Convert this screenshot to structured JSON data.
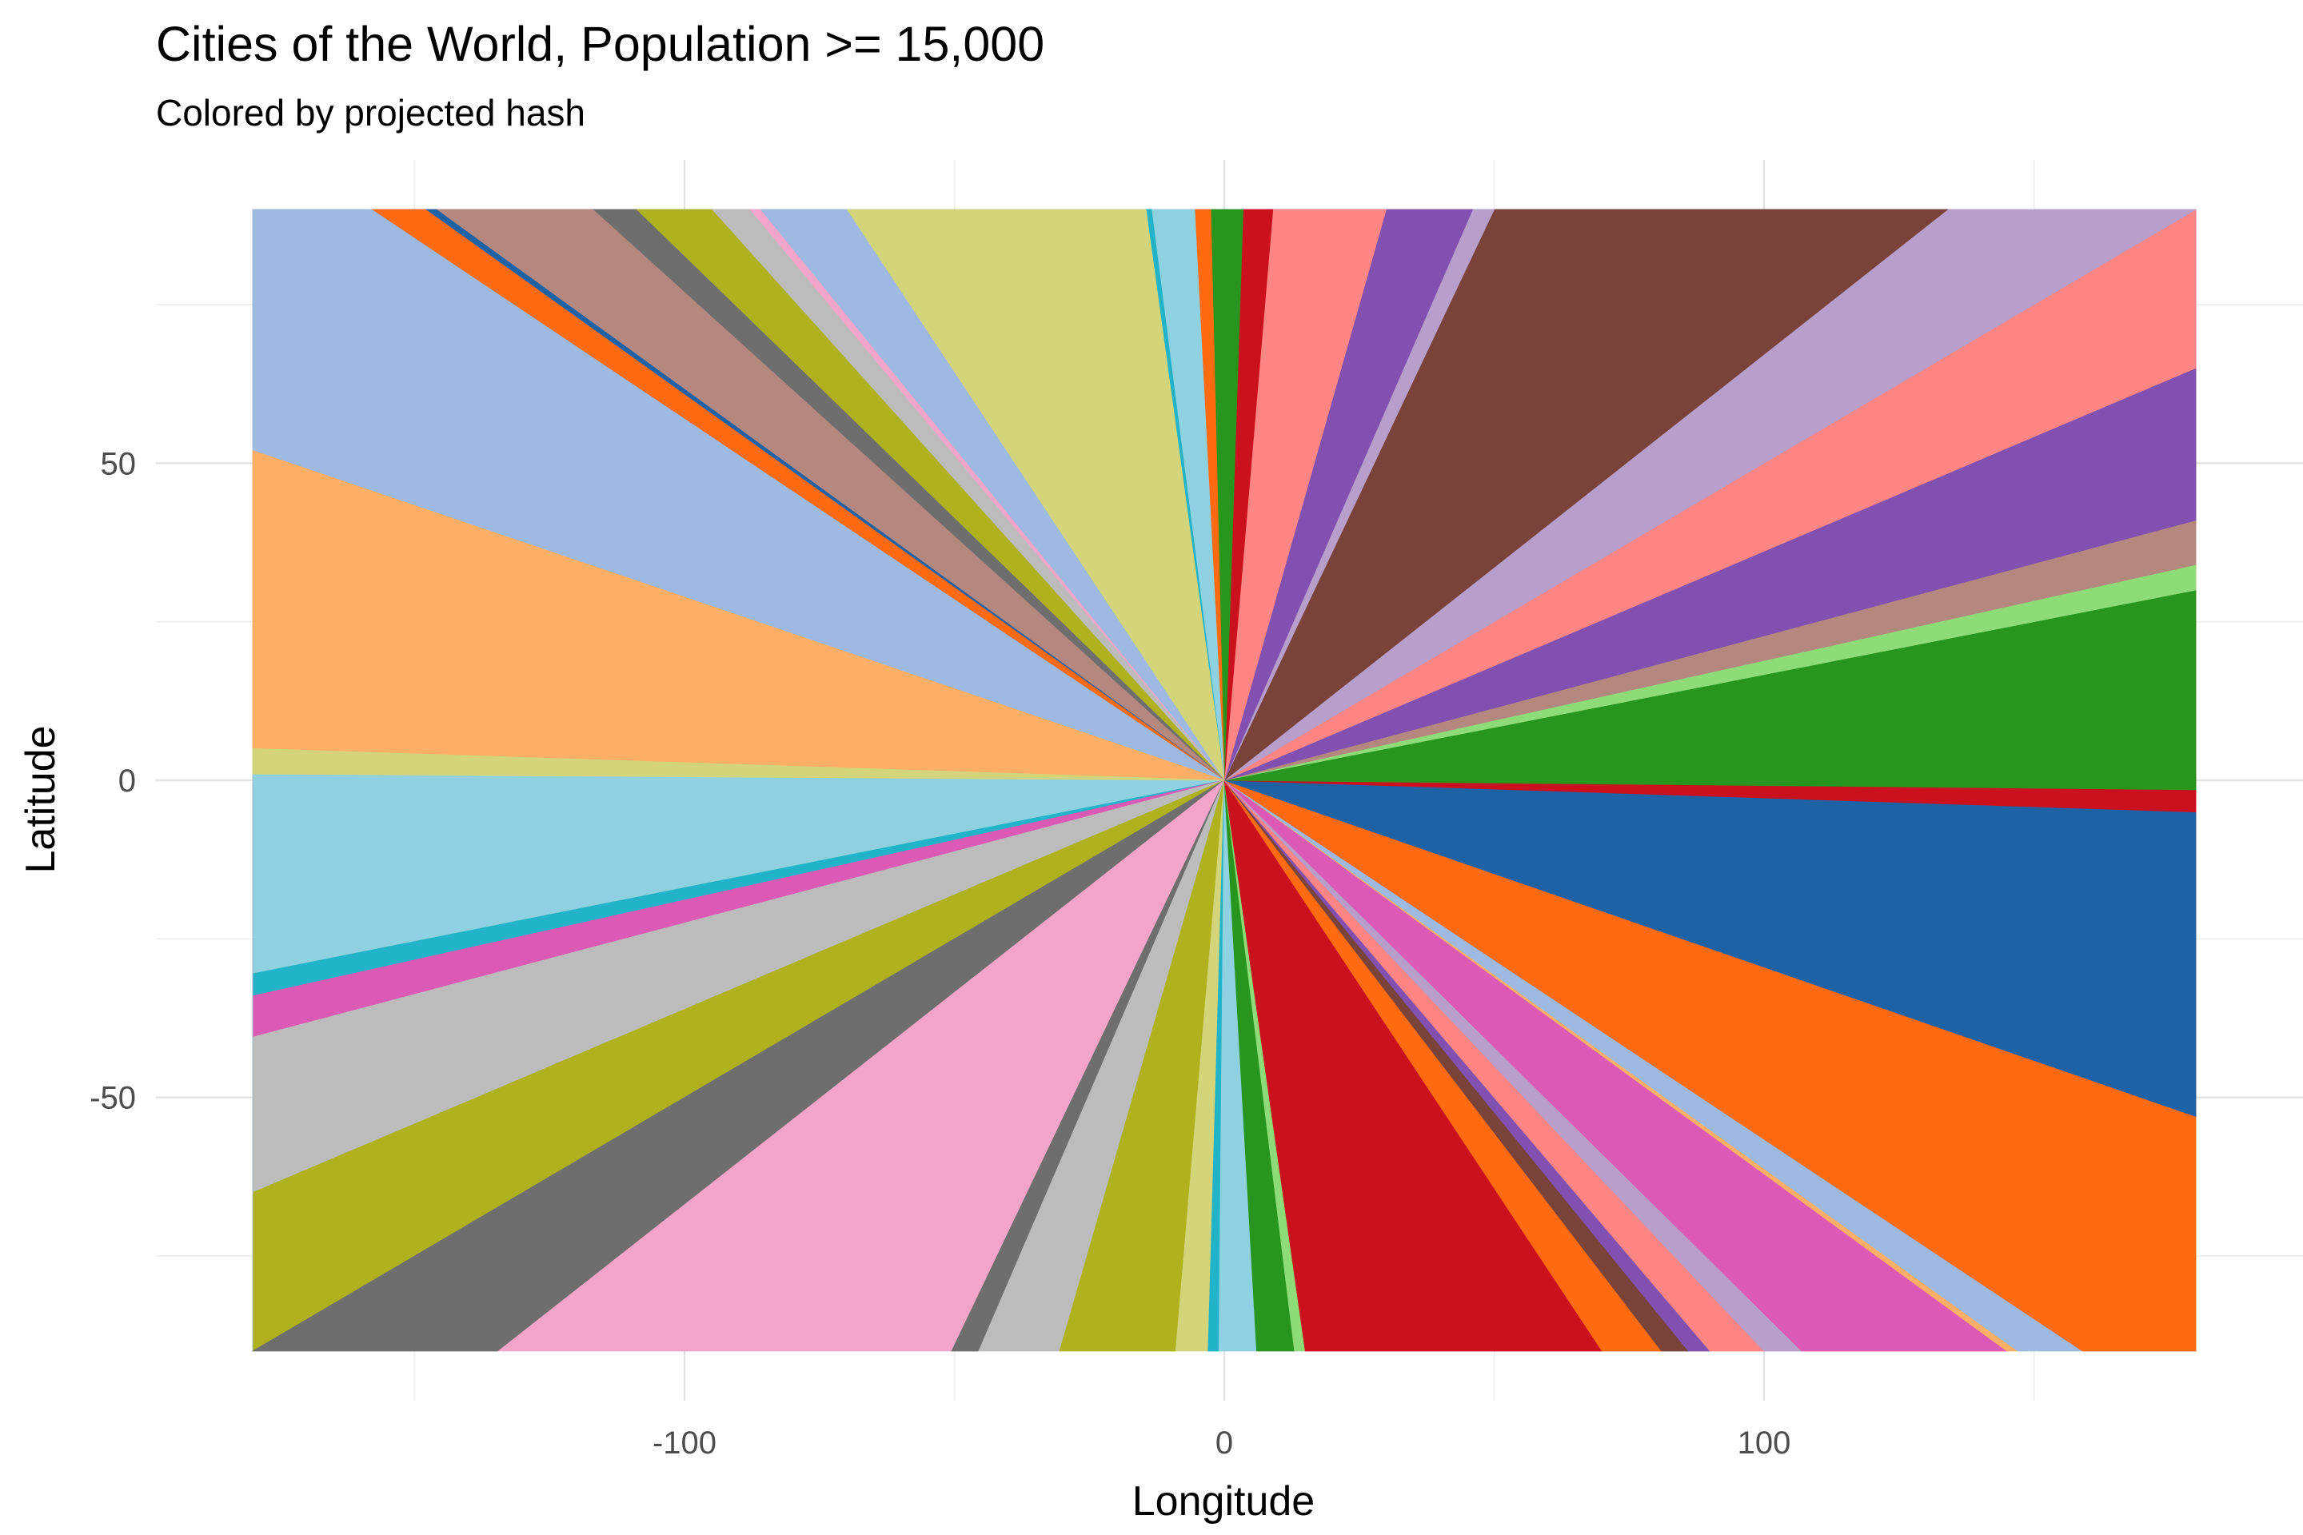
{
  "chart_data": {
    "type": "area",
    "title": "Cities of the World, Population >= 15,000",
    "subtitle": "Colored by projected hash",
    "xlabel": "Longitude",
    "ylabel": "Latitude",
    "xlim": [
      -180,
      180
    ],
    "ylim": [
      -90,
      90
    ],
    "x_ticks": [
      -100,
      0,
      100
    ],
    "x_tick_labels": [
      "-100",
      "0",
      "100"
    ],
    "y_ticks": [
      -50,
      0,
      50
    ],
    "y_tick_labels": [
      "-50",
      "0",
      "50"
    ],
    "grid": true,
    "legend": "none",
    "center": [
      0,
      0
    ],
    "sectors": [
      {
        "from": [
          -180,
          1
        ],
        "to": [
          -180,
          -30.5
        ],
        "color": "#8fd1e0"
      },
      {
        "from": [
          -180,
          -30.5
        ],
        "to": [
          -180,
          -34
        ],
        "color": "#21b3c8"
      },
      {
        "from": [
          -180,
          -34
        ],
        "to": [
          -180,
          -40.5
        ],
        "color": "#dc5ab5"
      },
      {
        "from": [
          -180,
          -40.5
        ],
        "to": [
          -180,
          -65
        ],
        "color": "#bcbcbc"
      },
      {
        "from": [
          -180,
          -65
        ],
        "to": [
          -180,
          -90
        ],
        "color": "#afb21d"
      },
      {
        "from": [
          -180,
          -90
        ],
        "to": [
          -134.5,
          -90
        ],
        "color": "#6e6e6e"
      },
      {
        "from": [
          -134.5,
          -90
        ],
        "to": [
          -50.5,
          -90
        ],
        "color": "#f3a5c9"
      },
      {
        "from": [
          -50.5,
          -90
        ],
        "to": [
          -45.5,
          -90
        ],
        "color": "#6e6e6e"
      },
      {
        "from": [
          -45.5,
          -90
        ],
        "to": [
          -30.5,
          -90
        ],
        "color": "#bcbcbc"
      },
      {
        "from": [
          -30.5,
          -90
        ],
        "to": [
          -9,
          -90
        ],
        "color": "#afb21d"
      },
      {
        "from": [
          -9,
          -90
        ],
        "to": [
          -3,
          -90
        ],
        "color": "#d4d57b"
      },
      {
        "from": [
          -3,
          -90
        ],
        "to": [
          -1,
          -90
        ],
        "color": "#21b3c8"
      },
      {
        "from": [
          -1,
          -90
        ],
        "to": [
          6,
          -90
        ],
        "color": "#8fd1e0"
      },
      {
        "from": [
          6,
          -90
        ],
        "to": [
          13,
          -90
        ],
        "color": "#28951f"
      },
      {
        "from": [
          13,
          -90
        ],
        "to": [
          15,
          -90
        ],
        "color": "#8ddc78"
      },
      {
        "from": [
          15,
          -90
        ],
        "to": [
          70,
          -90
        ],
        "color": "#cc111e"
      },
      {
        "from": [
          70,
          -90
        ],
        "to": [
          81,
          -90
        ],
        "color": "#fd6a10"
      },
      {
        "from": [
          81,
          -90
        ],
        "to": [
          86,
          -90
        ],
        "color": "#7a4339"
      },
      {
        "from": [
          86,
          -90
        ],
        "to": [
          90,
          -90
        ],
        "color": "#8150b0"
      },
      {
        "from": [
          90,
          -90
        ],
        "to": [
          100,
          -90
        ],
        "color": "#fd8583"
      },
      {
        "from": [
          100,
          -90
        ],
        "to": [
          107,
          -90
        ],
        "color": "#b89ecb"
      },
      {
        "from": [
          107,
          -90
        ],
        "to": [
          145,
          -90
        ],
        "color": "#dc5ab5"
      },
      {
        "from": [
          145,
          -90
        ],
        "to": [
          147,
          -90
        ],
        "color": "#fdae67"
      },
      {
        "from": [
          147,
          -90
        ],
        "to": [
          159,
          -90
        ],
        "color": "#9fbae2"
      },
      {
        "from": [
          159,
          -90
        ],
        "to": [
          180,
          -90
        ],
        "color": "#fd6a10"
      },
      {
        "from": [
          180,
          -90
        ],
        "to": [
          180,
          -53
        ],
        "color": "#fd6a10"
      },
      {
        "from": [
          180,
          -53
        ],
        "to": [
          180,
          -5
        ],
        "color": "#1c62a4"
      },
      {
        "from": [
          180,
          -5
        ],
        "to": [
          180,
          -1.5
        ],
        "color": "#cc111e"
      },
      {
        "from": [
          180,
          -1.5
        ],
        "to": [
          180,
          30
        ],
        "color": "#28951f"
      },
      {
        "from": [
          180,
          30
        ],
        "to": [
          180,
          34
        ],
        "color": "#8ddc78"
      },
      {
        "from": [
          180,
          34
        ],
        "to": [
          180,
          41
        ],
        "color": "#b4877f"
      },
      {
        "from": [
          180,
          41
        ],
        "to": [
          180,
          65
        ],
        "color": "#8150b0"
      },
      {
        "from": [
          180,
          65
        ],
        "to": [
          180,
          90
        ],
        "color": "#fd8583"
      },
      {
        "from": [
          180,
          90
        ],
        "to": [
          134,
          90
        ],
        "color": "#b89ecb"
      },
      {
        "from": [
          134,
          90
        ],
        "to": [
          50,
          90
        ],
        "color": "#7a4339"
      },
      {
        "from": [
          50,
          90
        ],
        "to": [
          46,
          90
        ],
        "color": "#b89ecb"
      },
      {
        "from": [
          46,
          90
        ],
        "to": [
          30,
          90
        ],
        "color": "#8150b0"
      },
      {
        "from": [
          30,
          90
        ],
        "to": [
          9,
          90
        ],
        "color": "#fd8583"
      },
      {
        "from": [
          9,
          90
        ],
        "to": [
          3.5,
          90
        ],
        "color": "#cc111e"
      },
      {
        "from": [
          3.5,
          90
        ],
        "to": [
          -2.5,
          90
        ],
        "color": "#28951f"
      },
      {
        "from": [
          -2.5,
          90
        ],
        "to": [
          -5.5,
          90
        ],
        "color": "#fd6a10"
      },
      {
        "from": [
          -5.5,
          90
        ],
        "to": [
          -13.5,
          90
        ],
        "color": "#8fd1e0"
      },
      {
        "from": [
          -13.5,
          90
        ],
        "to": [
          -14.5,
          90
        ],
        "color": "#21b3c8"
      },
      {
        "from": [
          -14.5,
          90
        ],
        "to": [
          -70,
          90
        ],
        "color": "#d4d57b"
      },
      {
        "from": [
          -70,
          90
        ],
        "to": [
          -86,
          90
        ],
        "color": "#9fbae2"
      },
      {
        "from": [
          -86,
          90
        ],
        "to": [
          -88,
          90
        ],
        "color": "#f3a5c9"
      },
      {
        "from": [
          -88,
          90
        ],
        "to": [
          -95,
          90
        ],
        "color": "#bcbcbc"
      },
      {
        "from": [
          -95,
          90
        ],
        "to": [
          -109,
          90
        ],
        "color": "#afb21d"
      },
      {
        "from": [
          -109,
          90
        ],
        "to": [
          -117,
          90
        ],
        "color": "#6e6e6e"
      },
      {
        "from": [
          -117,
          90
        ],
        "to": [
          -146,
          90
        ],
        "color": "#b4877f"
      },
      {
        "from": [
          -146,
          90
        ],
        "to": [
          -148,
          90
        ],
        "color": "#1c62a4"
      },
      {
        "from": [
          -148,
          90
        ],
        "to": [
          -158,
          90
        ],
        "color": "#fd6a10"
      },
      {
        "from": [
          -158,
          90
        ],
        "to": [
          -180,
          90
        ],
        "color": "#9fbae2"
      },
      {
        "from": [
          -180,
          90
        ],
        "to": [
          -180,
          52
        ],
        "color": "#9fbae2"
      },
      {
        "from": [
          -180,
          52
        ],
        "to": [
          -180,
          5
        ],
        "color": "#fdae67"
      },
      {
        "from": [
          -180,
          5
        ],
        "to": [
          -180,
          1
        ],
        "color": "#d4d57b"
      }
    ]
  }
}
